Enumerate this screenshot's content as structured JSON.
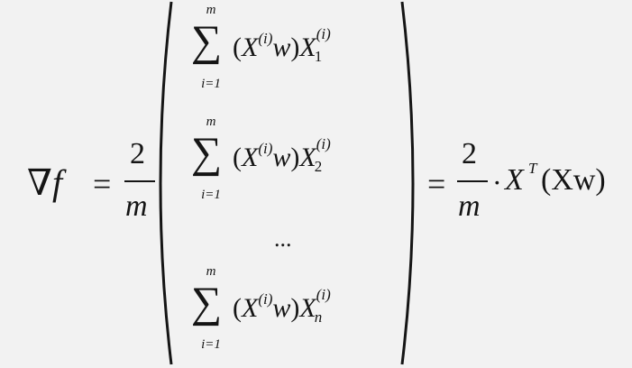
{
  "lhs": {
    "nabla": "∇",
    "func": "f"
  },
  "eq1": "=",
  "frac1": {
    "num": "2",
    "den": "m"
  },
  "rows": [
    {
      "upper": "m",
      "sigma": "∑",
      "lower": "i=1",
      "X": "X",
      "i": "(i)",
      "w": "w",
      "X2": "X",
      "sub": "1",
      "sup": "(i)"
    },
    {
      "upper": "m",
      "sigma": "∑",
      "lower": "i=1",
      "X": "X",
      "i": "(i)",
      "w": "w",
      "X2": "X",
      "sub": "2",
      "sup": "(i)"
    },
    {
      "upper": "m",
      "sigma": "∑",
      "lower": "i=1",
      "X": "X",
      "i": "(i)",
      "w": "w",
      "X2": "X",
      "sub": "n",
      "sup": "(i)"
    }
  ],
  "dots": "...",
  "eq2": "=",
  "frac2": {
    "num": "2",
    "den": "m"
  },
  "cdot": "·",
  "rhs": {
    "X": "X",
    "T": "T",
    "paren": "(Xw)"
  }
}
